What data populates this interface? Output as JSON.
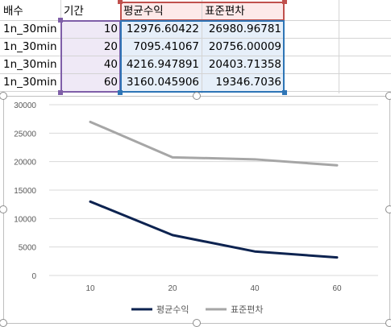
{
  "sheet": {
    "headers": [
      "배수",
      "기간",
      "평균수익",
      "표준편차"
    ],
    "rows": [
      [
        "1n_30min",
        "10",
        "12976.60422",
        "26980.96781"
      ],
      [
        "1n_30min",
        "20",
        "7095.41067",
        "20756.00009"
      ],
      [
        "1n_30min",
        "40",
        "4216.947891",
        "20403.71358"
      ],
      [
        "1n_30min",
        "60",
        "3160.045906",
        "19346.7036"
      ]
    ],
    "colors": {
      "category_range": "#7f5fa8",
      "category_fill": "#efe9f6",
      "series_header_range": "#c0504d",
      "series_header_fill": "#fde9e9",
      "values_range": "#2e75b6",
      "values_fill": "#e6eff9"
    }
  },
  "chart_data": {
    "type": "line",
    "title": "",
    "xlabel": "",
    "ylabel": "",
    "categories": [
      "10",
      "20",
      "40",
      "60"
    ],
    "series": [
      {
        "name": "평균수익",
        "values": [
          12976.60422,
          7095.41067,
          4216.947891,
          3160.045906
        ],
        "color": "#0d2350"
      },
      {
        "name": "표준편차",
        "values": [
          26980.96781,
          20756.00009,
          20403.71358,
          19346.7036
        ],
        "color": "#a6a6a6"
      }
    ],
    "ylim": [
      0,
      30000
    ],
    "y_ticks": [
      "30000",
      "25000",
      "20000",
      "15000",
      "10000",
      "5000",
      "0"
    ],
    "grid": true,
    "legend": "bottom"
  }
}
